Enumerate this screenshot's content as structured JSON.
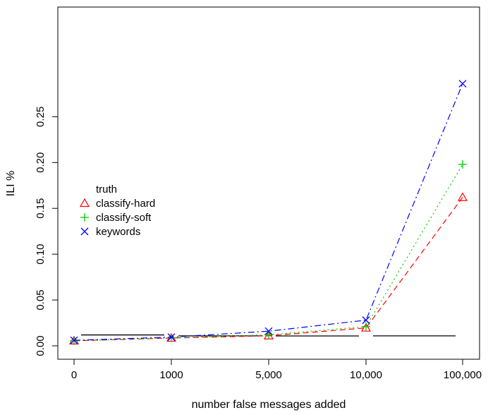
{
  "chart_data": {
    "type": "line",
    "title": "",
    "xlabel": "number false messages added",
    "ylabel": "ILI %",
    "categories": [
      "0",
      "1000",
      "5,000",
      "10,000",
      "100,000"
    ],
    "yticks": [
      "0.00",
      "0.05",
      "0.10",
      "0.15",
      "0.20",
      "0.25"
    ],
    "ylim": [
      0,
      0.29
    ],
    "legend_position": "left",
    "grid": false,
    "truth": {
      "name": "truth",
      "color": "#000000",
      "segments": [
        {
          "from": 0,
          "to": 1,
          "value": 0.0119
        },
        {
          "from": 1,
          "to": 2,
          "value": 0.0109
        },
        {
          "from": 2,
          "to": 3,
          "value": 0.0108
        },
        {
          "from": 3,
          "to": 4,
          "value": 0.0109
        }
      ]
    },
    "series": [
      {
        "name": "classify-hard",
        "marker": "triangle",
        "dash": "dashed",
        "color": "#ff0000",
        "values": [
          0.0055,
          0.0085,
          0.011,
          0.0195,
          0.162
        ]
      },
      {
        "name": "classify-soft",
        "marker": "plus",
        "dash": "dotted",
        "color": "#00cd00",
        "values": [
          0.0055,
          0.0088,
          0.012,
          0.021,
          0.198
        ]
      },
      {
        "name": "keywords",
        "marker": "cross",
        "dash": "dashdot",
        "color": "#0000ff",
        "values": [
          0.006,
          0.0095,
          0.016,
          0.028,
          0.286
        ]
      }
    ]
  }
}
